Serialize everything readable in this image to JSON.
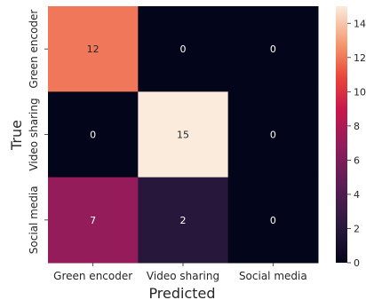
{
  "chart_data": {
    "type": "heatmap",
    "title": "",
    "xlabel": "Predicted",
    "ylabel": "True",
    "x_categories": [
      "Green encoder",
      "Video sharing",
      "Social media"
    ],
    "y_categories": [
      "Green encoder",
      "Video sharing",
      "Social media"
    ],
    "values": [
      [
        12,
        0,
        0
      ],
      [
        0,
        15,
        0
      ],
      [
        7,
        2,
        0
      ]
    ],
    "colorbar": {
      "range": [
        0,
        15
      ],
      "ticks": [
        0,
        2,
        4,
        6,
        8,
        10,
        12,
        14
      ],
      "colormap": "rocket"
    },
    "annotation_colors": {
      "on_dark": "#ffffff",
      "on_light": "#262626"
    }
  }
}
